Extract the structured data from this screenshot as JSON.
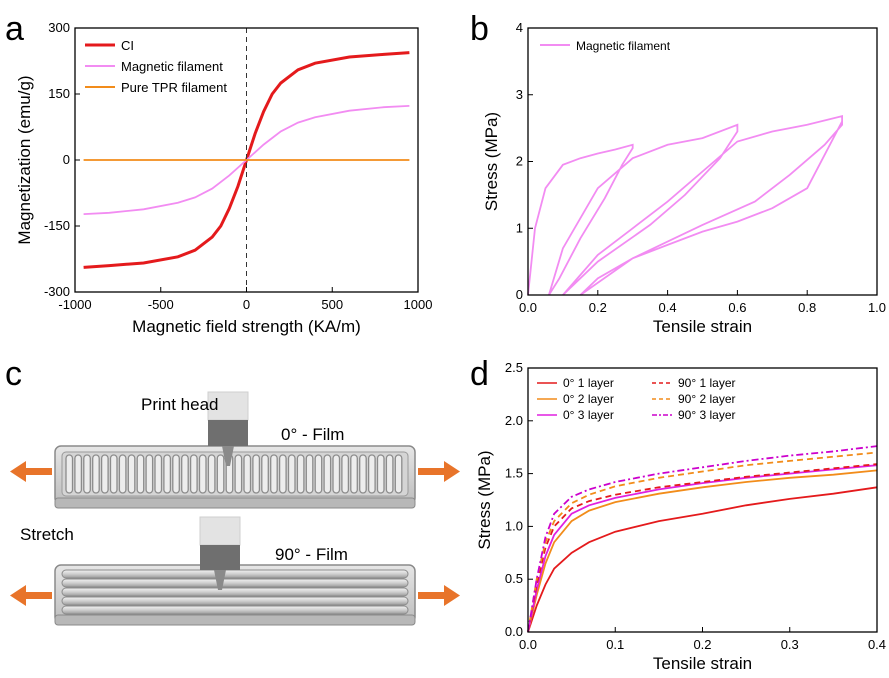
{
  "panels": {
    "a": {
      "letter": "a"
    },
    "b": {
      "letter": "b"
    },
    "c": {
      "letter": "c",
      "labels": {
        "print_head": "Print head",
        "film0": "0° - Film",
        "stretch": "Stretch",
        "film90": "90° - Film"
      }
    },
    "d": {
      "letter": "d"
    }
  },
  "colors": {
    "red": "#e41a1c",
    "magenta": "#f26cf2",
    "orange": "#f28c1a",
    "bright_magenta": "#e020e0",
    "violet": "#cc00cc"
  },
  "chart_data": [
    {
      "panel": "a",
      "type": "line",
      "xlabel": "Magnetic field strength (KA/m)",
      "ylabel": "Magnetization (emu/g)",
      "xlim": [
        -1000,
        1000
      ],
      "ylim": [
        -300,
        300
      ],
      "xticks": [
        "-1000",
        "-500",
        "0",
        "500",
        "1000"
      ],
      "yticks": [
        "-300",
        "-150",
        "0",
        "150",
        "300"
      ],
      "legend_position": "top-left",
      "series": [
        {
          "name": "CI",
          "color": "#e41a1c",
          "x": [
            -950,
            -800,
            -600,
            -400,
            -300,
            -200,
            -150,
            -100,
            -50,
            0,
            50,
            100,
            150,
            200,
            300,
            400,
            600,
            800,
            950
          ],
          "y": [
            -244,
            -240,
            -234,
            -220,
            -205,
            -175,
            -150,
            -110,
            -60,
            0,
            60,
            110,
            150,
            175,
            205,
            220,
            234,
            240,
            244
          ]
        },
        {
          "name": "Magnetic filament",
          "color": "#f28cf2",
          "x": [
            -950,
            -800,
            -600,
            -400,
            -300,
            -200,
            -100,
            0,
            100,
            200,
            300,
            400,
            600,
            800,
            950
          ],
          "y": [
            -123,
            -120,
            -112,
            -97,
            -85,
            -65,
            -35,
            0,
            35,
            65,
            85,
            97,
            112,
            120,
            123
          ]
        },
        {
          "name": "Pure TPR filament",
          "color": "#f28c1a",
          "x": [
            -950,
            950
          ],
          "y": [
            0,
            0
          ]
        }
      ]
    },
    {
      "panel": "b",
      "type": "line",
      "xlabel": "Tensile strain",
      "ylabel": "Stress (MPa)",
      "xlim": [
        0,
        1.0
      ],
      "ylim": [
        0,
        4
      ],
      "xticks": [
        "0.0",
        "0.2",
        "0.4",
        "0.6",
        "0.8",
        "1.0"
      ],
      "yticks": [
        "0",
        "1",
        "2",
        "3",
        "4"
      ],
      "legend_position": "top-left",
      "series": [
        {
          "name": "Magnetic filament",
          "color": "#f28cf2",
          "x": [
            0,
            0.02,
            0.05,
            0.1,
            0.15,
            0.2,
            0.25,
            0.3,
            0.3,
            0.27,
            0.22,
            0.15,
            0.09,
            0.06,
            0.1,
            0.2,
            0.3,
            0.4,
            0.5,
            0.6,
            0.6,
            0.55,
            0.45,
            0.35,
            0.2,
            0.1,
            0.2,
            0.3,
            0.4,
            0.5,
            0.6,
            0.7,
            0.8,
            0.9,
            0.9,
            0.85,
            0.75,
            0.65,
            0.5,
            0.4,
            0.3,
            0.15,
            0.2,
            0.3,
            0.4,
            0.5,
            0.6,
            0.7,
            0.8,
            0.9
          ],
          "y": [
            0,
            1.0,
            1.6,
            1.95,
            2.05,
            2.12,
            2.18,
            2.25,
            2.2,
            1.95,
            1.45,
            0.85,
            0.25,
            0,
            0.7,
            1.6,
            2.05,
            2.25,
            2.35,
            2.55,
            2.45,
            2.05,
            1.5,
            1.05,
            0.5,
            0,
            0.6,
            1.0,
            1.4,
            1.85,
            2.3,
            2.45,
            2.55,
            2.68,
            2.55,
            2.25,
            1.8,
            1.4,
            1.05,
            0.8,
            0.55,
            0,
            0.25,
            0.55,
            0.75,
            0.95,
            1.1,
            1.3,
            1.6,
            2.6
          ]
        }
      ]
    },
    {
      "panel": "d",
      "type": "line",
      "xlabel": "Tensile strain",
      "ylabel": "Stress (MPa)",
      "xlim": [
        0,
        0.4
      ],
      "ylim": [
        0,
        2.5
      ],
      "xticks": [
        "0.0",
        "0.1",
        "0.2",
        "0.3",
        "0.4"
      ],
      "yticks": [
        "0.0",
        "0.5",
        "1.0",
        "1.5",
        "2.0",
        "2.5"
      ],
      "legend_position": "top",
      "series": [
        {
          "name": "0°  1 layer",
          "color": "#e41a1c",
          "dash": "solid",
          "x": [
            0,
            0.01,
            0.02,
            0.03,
            0.05,
            0.07,
            0.1,
            0.15,
            0.2,
            0.25,
            0.3,
            0.35,
            0.4
          ],
          "y": [
            0,
            0.25,
            0.45,
            0.6,
            0.75,
            0.85,
            0.95,
            1.05,
            1.12,
            1.2,
            1.26,
            1.31,
            1.37
          ]
        },
        {
          "name": "0°  2 layer",
          "color": "#f28c1a",
          "dash": "solid",
          "x": [
            0,
            0.01,
            0.02,
            0.03,
            0.05,
            0.07,
            0.1,
            0.15,
            0.2,
            0.25,
            0.3,
            0.35,
            0.4
          ],
          "y": [
            0,
            0.35,
            0.65,
            0.85,
            1.05,
            1.15,
            1.23,
            1.31,
            1.37,
            1.42,
            1.46,
            1.49,
            1.53
          ]
        },
        {
          "name": "0°  3 layer",
          "color": "#e020e0",
          "dash": "solid",
          "x": [
            0,
            0.01,
            0.02,
            0.03,
            0.05,
            0.07,
            0.1,
            0.15,
            0.2,
            0.25,
            0.3,
            0.35,
            0.4
          ],
          "y": [
            0,
            0.4,
            0.72,
            0.92,
            1.12,
            1.2,
            1.27,
            1.35,
            1.41,
            1.46,
            1.5,
            1.54,
            1.58
          ]
        },
        {
          "name": "90° 1 layer",
          "color": "#e41a1c",
          "dash": "dashed",
          "x": [
            0,
            0.01,
            0.02,
            0.03,
            0.05,
            0.07,
            0.1,
            0.15,
            0.2,
            0.25,
            0.3,
            0.35,
            0.4
          ],
          "y": [
            0,
            0.45,
            0.8,
            1.0,
            1.17,
            1.24,
            1.3,
            1.37,
            1.42,
            1.47,
            1.51,
            1.55,
            1.59
          ]
        },
        {
          "name": "90° 2 layer",
          "color": "#f28c1a",
          "dash": "dashed",
          "x": [
            0,
            0.01,
            0.02,
            0.03,
            0.05,
            0.07,
            0.1,
            0.15,
            0.2,
            0.25,
            0.3,
            0.35,
            0.4
          ],
          "y": [
            0,
            0.5,
            0.85,
            1.05,
            1.22,
            1.3,
            1.38,
            1.46,
            1.52,
            1.58,
            1.62,
            1.66,
            1.7
          ]
        },
        {
          "name": "90° 3 layer",
          "color": "#cc00cc",
          "dash": "dashdot",
          "x": [
            0,
            0.01,
            0.02,
            0.03,
            0.05,
            0.07,
            0.1,
            0.15,
            0.2,
            0.25,
            0.3,
            0.35,
            0.4
          ],
          "y": [
            0,
            0.5,
            0.9,
            1.12,
            1.28,
            1.35,
            1.42,
            1.5,
            1.56,
            1.62,
            1.67,
            1.71,
            1.76
          ]
        }
      ]
    }
  ]
}
